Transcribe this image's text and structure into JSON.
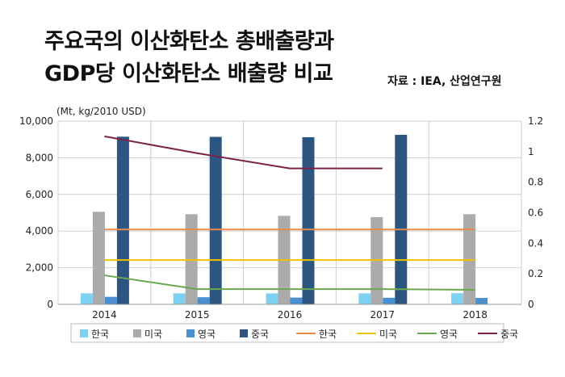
{
  "header": {
    "title_line1": "주요국의 이산화탄소 총배출량과",
    "title_line2": "GDP당 이산화탄소 배출량 비교",
    "source": "자료 : IEA, 산업연구원"
  },
  "chart_data": {
    "type": "bar",
    "unit_label": "(Mt, kg/2010 USD)",
    "categories": [
      "2014",
      "2015",
      "2016",
      "2017",
      "2018"
    ],
    "y_left": {
      "min": 0,
      "max": 10000,
      "ticks": [
        "0",
        "2,000",
        "4,000",
        "6,000",
        "8,000",
        "10,000"
      ]
    },
    "y_right": {
      "min": 0,
      "max": 1.2,
      "ticks": [
        "0",
        "0.2",
        "0.4",
        "0.6",
        "0.8",
        "1",
        "1.2"
      ]
    },
    "grid": true,
    "legend_position": "bottom",
    "bar_series": [
      {
        "name": "한국",
        "color": "#7fd1f2",
        "values": [
          600,
          600,
          600,
          600,
          610
        ]
      },
      {
        "name": "미국",
        "color": "#ababab",
        "values": [
          5050,
          4920,
          4830,
          4760,
          4920
        ]
      },
      {
        "name": "영국",
        "color": "#4a8fd0",
        "values": [
          410,
          390,
          370,
          360,
          350
        ]
      },
      {
        "name": "중국",
        "color": "#2c5582",
        "values": [
          9150,
          9140,
          9120,
          9250,
          null
        ]
      }
    ],
    "line_series": [
      {
        "name": "한국",
        "color": "#e98a4a",
        "values": [
          0.49,
          0.49,
          0.49,
          0.49,
          0.49
        ]
      },
      {
        "name": "미국",
        "color": "#f2c200",
        "values": [
          0.29,
          0.29,
          0.29,
          0.29,
          0.29
        ]
      },
      {
        "name": "영국",
        "color": "#6aa84f",
        "values": [
          0.19,
          0.1,
          0.1,
          0.1,
          0.095
        ]
      },
      {
        "name": "중국",
        "color": "#7b2248",
        "values": [
          1.1,
          0.99,
          0.89,
          0.89,
          null
        ]
      }
    ]
  }
}
